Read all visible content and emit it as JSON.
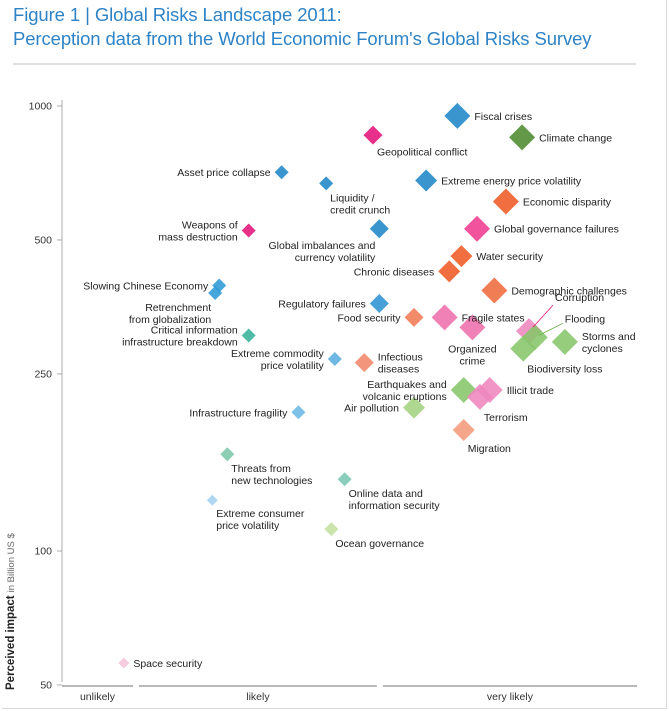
{
  "title_line1": "Figure 1 | Global Risks Landscape 2011:",
  "title_line2": "Perception data from the World Economic Forum's Global Risks Survey",
  "chart_data": {
    "type": "scatter",
    "y_scale": "log",
    "ylim": [
      50,
      1000
    ],
    "yticks": [
      50,
      100,
      250,
      500,
      1000
    ],
    "ylabel": "Perceived impact",
    "ylabel_unit": "in Billion US $",
    "x_scale": "perceived likelihood (ordinal, 0-1)",
    "xlim": [
      0,
      1
    ],
    "x_bands": [
      {
        "label": "unlikely",
        "start": 0.0,
        "end": 0.128
      },
      {
        "label": "likely",
        "start": 0.128,
        "end": 0.55
      },
      {
        "label": "very likely",
        "start": 0.55,
        "end": 1.0
      }
    ],
    "points": [
      {
        "name": "Fiscal crises",
        "x": 0.684,
        "y": 950,
        "color": "#1f86c8",
        "size": "large",
        "label_pos": "right"
      },
      {
        "name": "Climate change",
        "x": 0.796,
        "y": 850,
        "color": "#4d8a2f",
        "size": "large",
        "label_pos": "right"
      },
      {
        "name": "Geopolitical conflict",
        "x": 0.538,
        "y": 860,
        "color": "#e2137a",
        "size": "medium",
        "label_pos": "below-right"
      },
      {
        "name": "Extreme energy price volatility",
        "x": 0.63,
        "y": 680,
        "color": "#1f86c8",
        "size": "medium-large",
        "label_pos": "right"
      },
      {
        "name": "Economic disparity",
        "x": 0.768,
        "y": 610,
        "color": "#ee5a24",
        "size": "large",
        "label_pos": "right"
      },
      {
        "name": "Asset price collapse",
        "x": 0.38,
        "y": 710,
        "color": "#1f86c8",
        "size": "small",
        "label_pos": "left"
      },
      {
        "name": "Liquidity / credit crunch",
        "x": 0.457,
        "y": 670,
        "color": "#1f86c8",
        "size": "small",
        "label_pos": "below-right"
      },
      {
        "name": "Weapons of mass destruction",
        "x": 0.323,
        "y": 525,
        "color": "#e2137a",
        "size": "small",
        "label_pos": "left"
      },
      {
        "name": "Global imbalances and currency volatility",
        "x": 0.549,
        "y": 530,
        "color": "#1f86c8",
        "size": "medium",
        "label_pos": "below-left"
      },
      {
        "name": "Global governance failures",
        "x": 0.718,
        "y": 530,
        "color": "#ef3b8f",
        "size": "large",
        "label_pos": "right"
      },
      {
        "name": "Water security",
        "x": 0.691,
        "y": 460,
        "color": "#ee5a24",
        "size": "medium-large",
        "label_pos": "right"
      },
      {
        "name": "Chronic diseases",
        "x": 0.67,
        "y": 425,
        "color": "#ee5a24",
        "size": "medium-large",
        "label_pos": "left"
      },
      {
        "name": "Demographic challenges",
        "x": 0.748,
        "y": 385,
        "color": "#ef6b3d",
        "size": "large",
        "label_pos": "right"
      },
      {
        "name": "Slowing Chinese Economy",
        "x": 0.272,
        "y": 395,
        "color": "#2e9ad6",
        "size": "small",
        "label_pos": "left"
      },
      {
        "name": "Retrenchment from globalization",
        "x": 0.265,
        "y": 380,
        "color": "#2e9ad6",
        "size": "small",
        "label_pos": "below-left"
      },
      {
        "name": "Regulatory failures",
        "x": 0.549,
        "y": 360,
        "color": "#2e93d2",
        "size": "medium",
        "label_pos": "left"
      },
      {
        "name": "Food security",
        "x": 0.609,
        "y": 335,
        "color": "#ef7b54",
        "size": "medium",
        "label_pos": "left"
      },
      {
        "name": "Fragile states",
        "x": 0.662,
        "y": 335,
        "color": "#ee70ad",
        "size": "large",
        "label_pos": "right"
      },
      {
        "name": "Organized crime",
        "x": 0.71,
        "y": 318,
        "color": "#ee70ad",
        "size": "large",
        "label_pos": "below"
      },
      {
        "name": "Corruption",
        "x": 0.808,
        "y": 312,
        "color": "#ef86bf",
        "size": "large",
        "label_pos": "callout"
      },
      {
        "name": "Flooding",
        "x": 0.818,
        "y": 302,
        "color": "#86c66a",
        "size": "large",
        "label_pos": "callout"
      },
      {
        "name": "Storms and cyclones",
        "x": 0.87,
        "y": 295,
        "color": "#86c66a",
        "size": "large",
        "label_pos": "right"
      },
      {
        "name": "Biodiversity loss",
        "x": 0.798,
        "y": 285,
        "color": "#86c66a",
        "size": "large",
        "label_pos": "below-right"
      },
      {
        "name": "Critical information infrastructure breakdown",
        "x": 0.323,
        "y": 305,
        "color": "#38b39a",
        "size": "small",
        "label_pos": "left"
      },
      {
        "name": "Extreme commodity price volatility",
        "x": 0.472,
        "y": 270,
        "color": "#5aaee0",
        "size": "small",
        "label_pos": "left"
      },
      {
        "name": "Infectious diseases",
        "x": 0.523,
        "y": 265,
        "color": "#f0866a",
        "size": "medium",
        "label_pos": "right"
      },
      {
        "name": "Earthquakes and volcanic eruptions",
        "x": 0.695,
        "y": 230,
        "color": "#86c66a",
        "size": "large",
        "label_pos": "left"
      },
      {
        "name": "Illicit trade",
        "x": 0.74,
        "y": 230,
        "color": "#ef86bf",
        "size": "large",
        "label_pos": "right"
      },
      {
        "name": "Terrorism",
        "x": 0.723,
        "y": 222,
        "color": "#ef86bf",
        "size": "large",
        "label_pos": "below-right"
      },
      {
        "name": "Air pollution",
        "x": 0.609,
        "y": 210,
        "color": "#a3d27f",
        "size": "medium-large",
        "label_pos": "left"
      },
      {
        "name": "Migration",
        "x": 0.695,
        "y": 187,
        "color": "#f29a7a",
        "size": "medium-large",
        "label_pos": "below-right"
      },
      {
        "name": "Infrastructure fragility",
        "x": 0.409,
        "y": 205,
        "color": "#6bb8e3",
        "size": "small",
        "label_pos": "left"
      },
      {
        "name": "Threats from new technologies",
        "x": 0.286,
        "y": 165,
        "color": "#7bc7a8",
        "size": "small",
        "label_pos": "below-right"
      },
      {
        "name": "Online data and information security",
        "x": 0.489,
        "y": 145,
        "color": "#7bc7b2",
        "size": "small",
        "label_pos": "below-right"
      },
      {
        "name": "Extreme consumer price volatility",
        "x": 0.26,
        "y": 130,
        "color": "#a3d2ef",
        "size": "tiny",
        "label_pos": "below-right"
      },
      {
        "name": "Ocean governance",
        "x": 0.466,
        "y": 112,
        "color": "#c4e0a0",
        "size": "small",
        "label_pos": "below-right"
      },
      {
        "name": "Space security",
        "x": 0.107,
        "y": 56,
        "color": "#f4c4d9",
        "size": "tiny",
        "label_pos": "right"
      }
    ]
  }
}
